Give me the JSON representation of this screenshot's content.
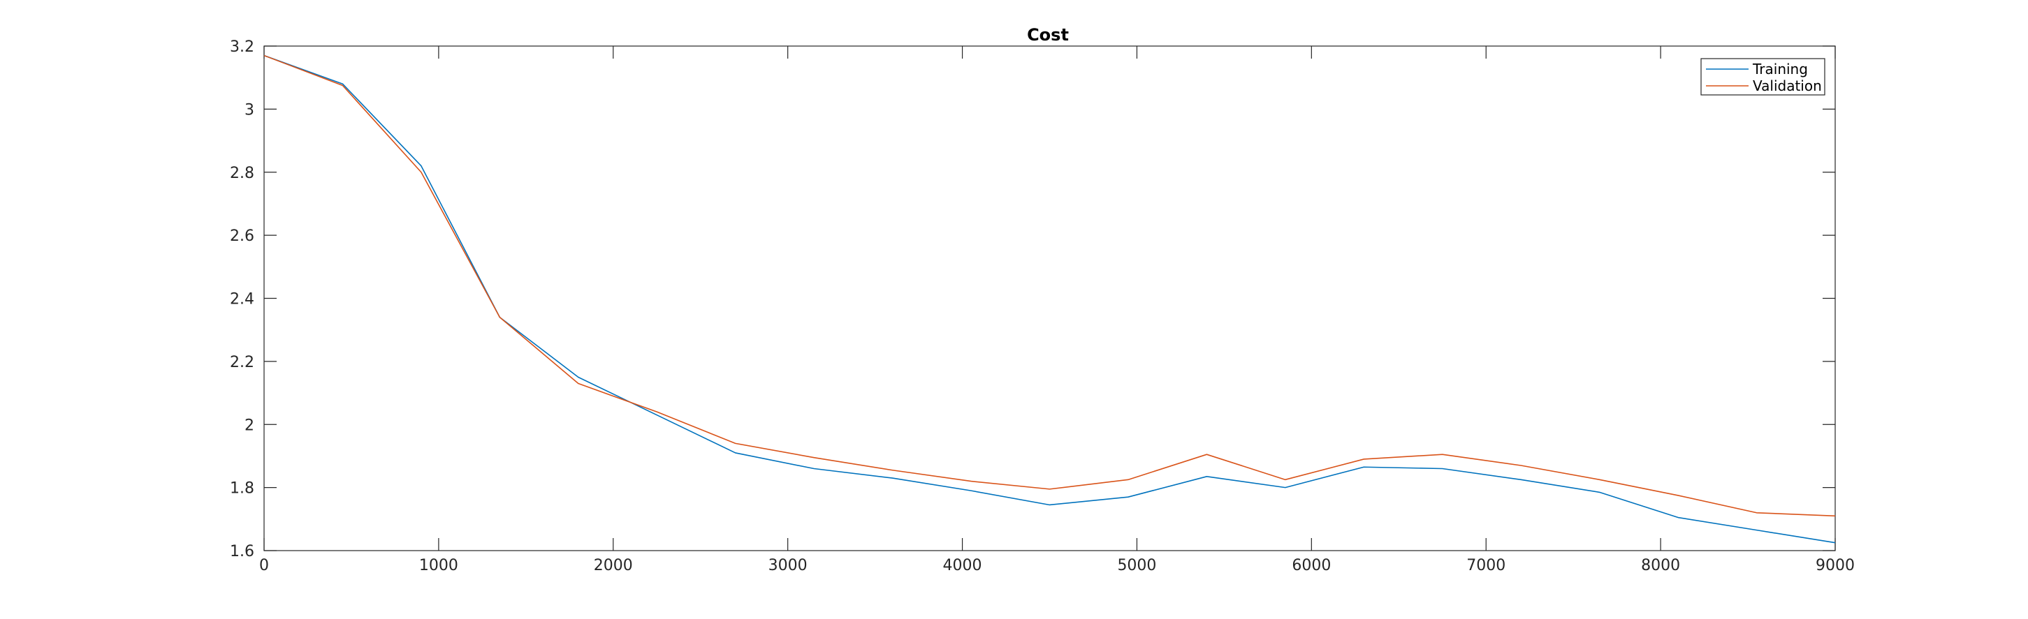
{
  "chart_data": {
    "type": "line",
    "title": "Cost",
    "xlabel": "",
    "ylabel": "",
    "xlim": [
      0,
      9000
    ],
    "ylim": [
      1.6,
      3.2
    ],
    "xticks": [
      0,
      1000,
      2000,
      3000,
      4000,
      5000,
      6000,
      7000,
      8000,
      9000
    ],
    "xtick_labels": [
      "0",
      "1000",
      "2000",
      "3000",
      "4000",
      "5000",
      "6000",
      "7000",
      "8000",
      "9000"
    ],
    "yticks": [
      1.6,
      1.8,
      2.0,
      2.2,
      2.4,
      2.6,
      2.8,
      3.0,
      3.2
    ],
    "ytick_labels": [
      "1.6",
      "1.8",
      "2",
      "2.2",
      "2.4",
      "2.6",
      "2.8",
      "3",
      "3.2"
    ],
    "grid": false,
    "legend_position": "top-right",
    "x": [
      0,
      450,
      900,
      1350,
      1800,
      2250,
      2700,
      3150,
      3600,
      4050,
      4500,
      4950,
      5400,
      5850,
      6300,
      6750,
      7200,
      7650,
      8100,
      8550,
      9000
    ],
    "series": [
      {
        "name": "Training",
        "color": "#0072BD",
        "values": [
          3.17,
          3.08,
          2.82,
          2.34,
          2.15,
          2.03,
          1.91,
          1.86,
          1.83,
          1.79,
          1.745,
          1.77,
          1.835,
          1.8,
          1.865,
          1.86,
          1.825,
          1.785,
          1.705,
          1.665,
          1.625
        ]
      },
      {
        "name": "Validation",
        "color": "#D95319",
        "values": [
          3.17,
          3.075,
          2.8,
          2.34,
          2.13,
          2.04,
          1.94,
          1.895,
          1.855,
          1.82,
          1.795,
          1.825,
          1.905,
          1.825,
          1.89,
          1.905,
          1.87,
          1.825,
          1.775,
          1.72,
          1.71
        ]
      }
    ]
  }
}
